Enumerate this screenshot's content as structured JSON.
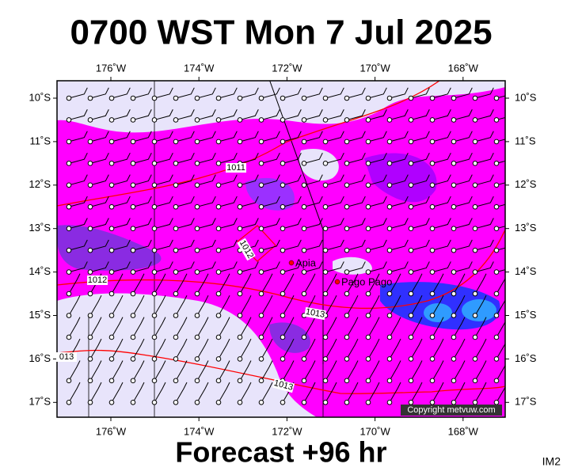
{
  "map": {
    "title": "0700 WST Mon 7 Jul 2025",
    "footer": "Forecast +96 hr",
    "corner_label": "IM2",
    "copyright": "Copyright metvuw.com",
    "lon_ticks": [
      {
        "value": -176,
        "label": "176˚W"
      },
      {
        "value": -174,
        "label": "174˚W"
      },
      {
        "value": -172,
        "label": "172˚W"
      },
      {
        "value": -170,
        "label": "170˚W"
      },
      {
        "value": -168,
        "label": "168˚W"
      }
    ],
    "lat_ticks": [
      {
        "value": -10,
        "label": "10˚S"
      },
      {
        "value": -11,
        "label": "11˚S"
      },
      {
        "value": -12,
        "label": "12˚S"
      },
      {
        "value": -13,
        "label": "13˚S"
      },
      {
        "value": -14,
        "label": "14˚S"
      },
      {
        "value": -15,
        "label": "15˚S"
      },
      {
        "value": -16,
        "label": "16˚S"
      },
      {
        "value": -17,
        "label": "17˚S"
      }
    ],
    "isobar_labels": [
      "1011",
      "1012",
      "1012",
      "1013",
      "1013",
      "013"
    ],
    "places": [
      "Apia",
      "Pago Pago"
    ]
  }
}
